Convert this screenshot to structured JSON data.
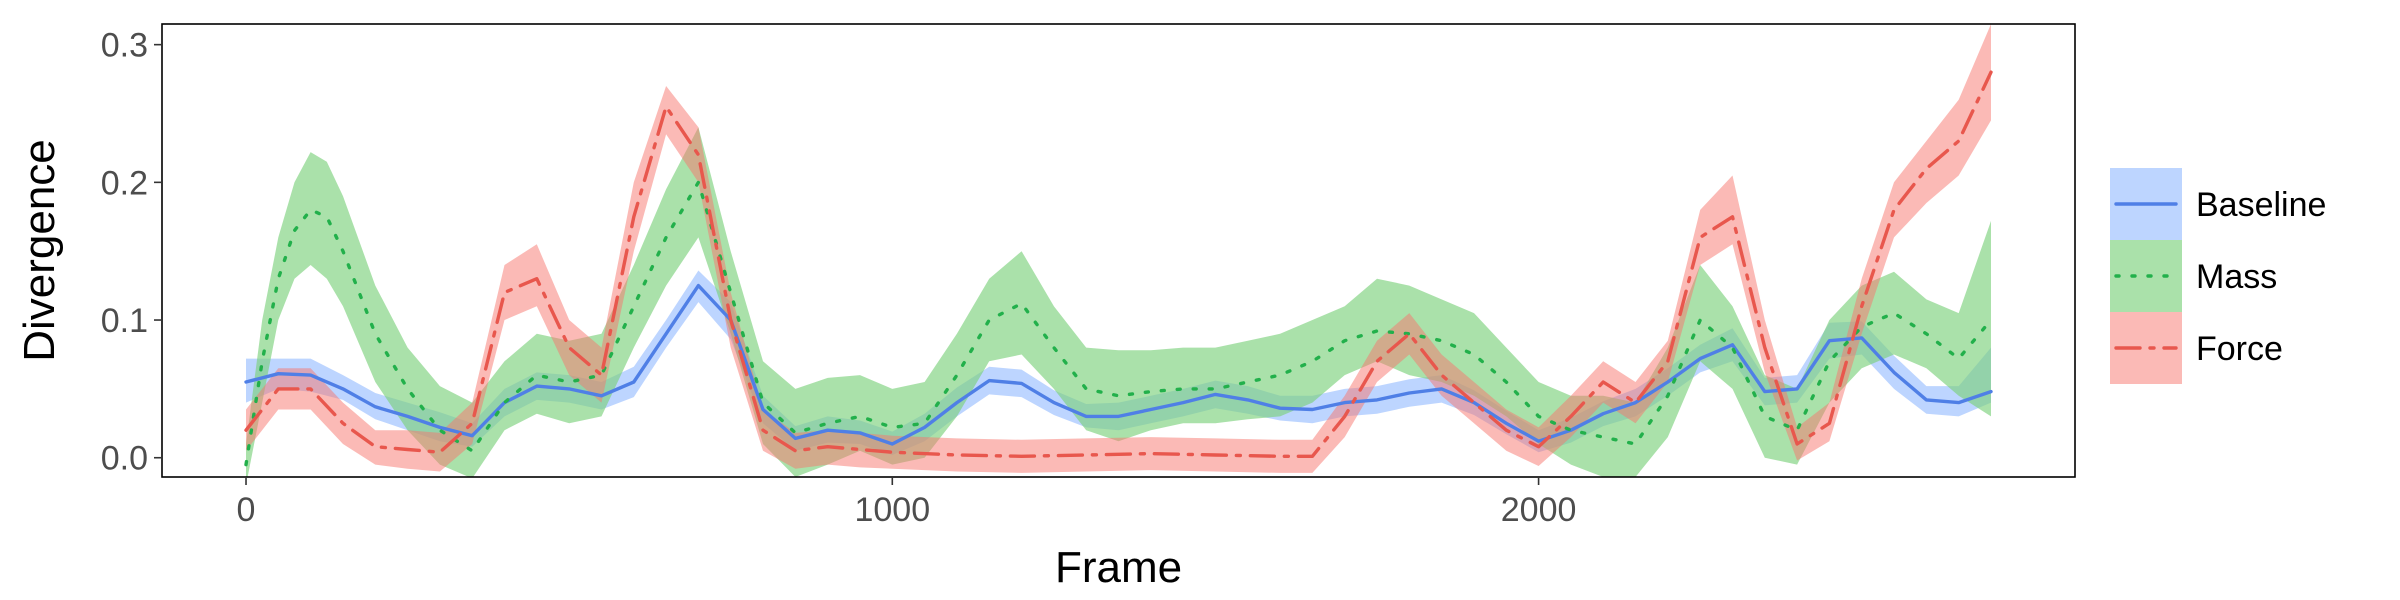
{
  "chart_data": {
    "type": "line",
    "xlabel": "Frame",
    "ylabel": "Divergence",
    "xlim": [
      -130,
      2830
    ],
    "ylim": [
      -0.014,
      0.315
    ],
    "x_ticks": [
      0,
      1000,
      2000
    ],
    "x_tick_labels": [
      "0",
      "1000",
      "2000"
    ],
    "y_ticks": [
      0.0,
      0.1,
      0.2,
      0.3
    ],
    "y_tick_labels": [
      "0.0",
      "0.1",
      "0.2",
      "0.3"
    ],
    "grid": false,
    "legend_position": "right",
    "series": [
      {
        "name": "Baseline",
        "color": "#619cff",
        "line_color": "#4f7fe6",
        "dash": "solid",
        "band_opacity": 0.42,
        "x": [
          0,
          50,
          100,
          150,
          200,
          250,
          300,
          350,
          400,
          450,
          500,
          550,
          600,
          650,
          700,
          750,
          800,
          850,
          900,
          950,
          1000,
          1050,
          1100,
          1150,
          1200,
          1250,
          1300,
          1350,
          1400,
          1450,
          1500,
          1550,
          1600,
          1650,
          1700,
          1750,
          1800,
          1850,
          1900,
          1950,
          2000,
          2050,
          2100,
          2150,
          2200,
          2250,
          2300,
          2350,
          2400,
          2450,
          2500,
          2550,
          2600,
          2650,
          2700
        ],
        "values": [
          0.055,
          0.061,
          0.06,
          0.05,
          0.037,
          0.03,
          0.022,
          0.016,
          0.04,
          0.052,
          0.05,
          0.045,
          0.055,
          0.09,
          0.125,
          0.1,
          0.035,
          0.014,
          0.02,
          0.018,
          0.01,
          0.022,
          0.04,
          0.056,
          0.054,
          0.04,
          0.03,
          0.03,
          0.035,
          0.04,
          0.046,
          0.042,
          0.036,
          0.035,
          0.04,
          0.042,
          0.047,
          0.05,
          0.04,
          0.025,
          0.012,
          0.02,
          0.032,
          0.04,
          0.055,
          0.072,
          0.082,
          0.048,
          0.05,
          0.085,
          0.087,
          0.062,
          0.042,
          0.04,
          0.048
        ],
        "lower": [
          0.04,
          0.05,
          0.048,
          0.042,
          0.028,
          0.02,
          0.012,
          0.008,
          0.03,
          0.042,
          0.04,
          0.035,
          0.044,
          0.08,
          0.113,
          0.086,
          0.025,
          0.005,
          0.011,
          0.01,
          0.002,
          0.012,
          0.03,
          0.046,
          0.044,
          0.031,
          0.022,
          0.02,
          0.025,
          0.03,
          0.036,
          0.032,
          0.027,
          0.025,
          0.03,
          0.032,
          0.037,
          0.04,
          0.031,
          0.017,
          0.004,
          0.011,
          0.023,
          0.03,
          0.045,
          0.062,
          0.07,
          0.038,
          0.04,
          0.072,
          0.075,
          0.05,
          0.032,
          0.03,
          0.04
        ],
        "upper": [
          0.072,
          0.072,
          0.072,
          0.06,
          0.047,
          0.04,
          0.033,
          0.025,
          0.05,
          0.062,
          0.06,
          0.055,
          0.066,
          0.1,
          0.136,
          0.113,
          0.045,
          0.023,
          0.03,
          0.027,
          0.019,
          0.032,
          0.051,
          0.066,
          0.064,
          0.049,
          0.039,
          0.04,
          0.045,
          0.05,
          0.056,
          0.052,
          0.045,
          0.045,
          0.05,
          0.052,
          0.057,
          0.06,
          0.049,
          0.034,
          0.02,
          0.029,
          0.041,
          0.05,
          0.065,
          0.082,
          0.094,
          0.058,
          0.06,
          0.098,
          0.099,
          0.074,
          0.052,
          0.052,
          0.08
        ]
      },
      {
        "name": "Mass",
        "color": "#7cd17c",
        "line_color": "#22b04b",
        "dash": "dotted",
        "band_opacity": 0.65,
        "x": [
          0,
          25,
          50,
          75,
          100,
          125,
          150,
          200,
          250,
          300,
          350,
          400,
          450,
          500,
          550,
          600,
          650,
          700,
          750,
          800,
          850,
          900,
          950,
          1000,
          1050,
          1100,
          1150,
          1200,
          1250,
          1300,
          1350,
          1400,
          1450,
          1500,
          1550,
          1600,
          1650,
          1700,
          1750,
          1800,
          1850,
          1900,
          1950,
          2000,
          2050,
          2100,
          2150,
          2200,
          2250,
          2300,
          2350,
          2400,
          2450,
          2500,
          2550,
          2600,
          2650,
          2700
        ],
        "values": [
          -0.005,
          0.07,
          0.13,
          0.165,
          0.18,
          0.175,
          0.15,
          0.09,
          0.05,
          0.02,
          0.005,
          0.04,
          0.06,
          0.055,
          0.06,
          0.11,
          0.16,
          0.2,
          0.12,
          0.04,
          0.018,
          0.025,
          0.03,
          0.022,
          0.025,
          0.06,
          0.1,
          0.112,
          0.08,
          0.05,
          0.045,
          0.048,
          0.05,
          0.05,
          0.055,
          0.06,
          0.07,
          0.085,
          0.092,
          0.09,
          0.085,
          0.075,
          0.055,
          0.03,
          0.02,
          0.015,
          0.01,
          0.045,
          0.1,
          0.08,
          0.03,
          0.02,
          0.07,
          0.095,
          0.105,
          0.09,
          0.072,
          0.1
        ],
        "lower": [
          -0.02,
          0.04,
          0.1,
          0.13,
          0.14,
          0.13,
          0.11,
          0.055,
          0.02,
          -0.005,
          -0.015,
          0.02,
          0.032,
          0.025,
          0.03,
          0.08,
          0.125,
          0.16,
          0.09,
          0.01,
          -0.014,
          -0.005,
          0.005,
          -0.005,
          0.0,
          0.03,
          0.07,
          0.075,
          0.05,
          0.02,
          0.012,
          0.02,
          0.025,
          0.025,
          0.028,
          0.03,
          0.04,
          0.06,
          0.07,
          0.06,
          0.055,
          0.045,
          0.03,
          0.01,
          -0.005,
          -0.014,
          -0.014,
          0.015,
          0.07,
          0.05,
          0.0,
          -0.005,
          0.04,
          0.065,
          0.075,
          0.065,
          0.045,
          0.03
        ],
        "upper": [
          0.01,
          0.1,
          0.16,
          0.2,
          0.222,
          0.215,
          0.19,
          0.125,
          0.08,
          0.052,
          0.04,
          0.07,
          0.09,
          0.085,
          0.09,
          0.14,
          0.195,
          0.24,
          0.15,
          0.07,
          0.05,
          0.058,
          0.06,
          0.05,
          0.055,
          0.09,
          0.13,
          0.15,
          0.11,
          0.08,
          0.078,
          0.078,
          0.08,
          0.08,
          0.085,
          0.09,
          0.1,
          0.11,
          0.13,
          0.125,
          0.115,
          0.105,
          0.08,
          0.055,
          0.045,
          0.045,
          0.04,
          0.08,
          0.14,
          0.11,
          0.06,
          0.05,
          0.1,
          0.125,
          0.135,
          0.115,
          0.105,
          0.172
        ]
      },
      {
        "name": "Force",
        "color": "#f8766d",
        "line_color": "#e8574d",
        "dash": "dashdot",
        "band_opacity": 0.5,
        "x": [
          0,
          50,
          100,
          150,
          200,
          250,
          300,
          350,
          400,
          450,
          500,
          550,
          600,
          650,
          700,
          750,
          800,
          850,
          900,
          950,
          1000,
          1100,
          1200,
          1300,
          1400,
          1500,
          1600,
          1650,
          1700,
          1750,
          1800,
          1850,
          1900,
          1950,
          2000,
          2050,
          2100,
          2150,
          2200,
          2250,
          2300,
          2350,
          2400,
          2450,
          2500,
          2550,
          2600,
          2650,
          2700
        ],
        "values": [
          0.02,
          0.05,
          0.05,
          0.025,
          0.008,
          0.006,
          0.004,
          0.025,
          0.12,
          0.13,
          0.08,
          0.06,
          0.175,
          0.255,
          0.22,
          0.1,
          0.02,
          0.005,
          0.008,
          0.006,
          0.004,
          0.002,
          0.001,
          0.002,
          0.003,
          0.002,
          0.001,
          0.001,
          0.03,
          0.07,
          0.09,
          0.06,
          0.04,
          0.02,
          0.008,
          0.03,
          0.055,
          0.04,
          0.07,
          0.16,
          0.175,
          0.08,
          0.01,
          0.025,
          0.11,
          0.18,
          0.21,
          0.23,
          0.28
        ],
        "lower": [
          0.005,
          0.035,
          0.035,
          0.01,
          -0.005,
          -0.008,
          -0.01,
          0.01,
          0.1,
          0.11,
          0.06,
          0.04,
          0.15,
          0.235,
          0.2,
          0.08,
          0.005,
          -0.008,
          -0.005,
          -0.007,
          -0.008,
          -0.01,
          -0.011,
          -0.01,
          -0.009,
          -0.01,
          -0.011,
          -0.011,
          0.015,
          0.055,
          0.075,
          0.045,
          0.025,
          0.005,
          -0.006,
          0.015,
          0.04,
          0.025,
          0.055,
          0.14,
          0.155,
          0.062,
          -0.002,
          0.012,
          0.09,
          0.16,
          0.185,
          0.205,
          0.245
        ],
        "upper": [
          0.035,
          0.065,
          0.065,
          0.04,
          0.02,
          0.02,
          0.018,
          0.04,
          0.14,
          0.155,
          0.1,
          0.08,
          0.2,
          0.27,
          0.24,
          0.12,
          0.035,
          0.018,
          0.02,
          0.018,
          0.016,
          0.014,
          0.013,
          0.014,
          0.015,
          0.014,
          0.013,
          0.013,
          0.045,
          0.085,
          0.105,
          0.075,
          0.055,
          0.035,
          0.022,
          0.045,
          0.07,
          0.055,
          0.085,
          0.18,
          0.205,
          0.1,
          0.022,
          0.04,
          0.13,
          0.2,
          0.23,
          0.26,
          0.315
        ]
      }
    ]
  }
}
